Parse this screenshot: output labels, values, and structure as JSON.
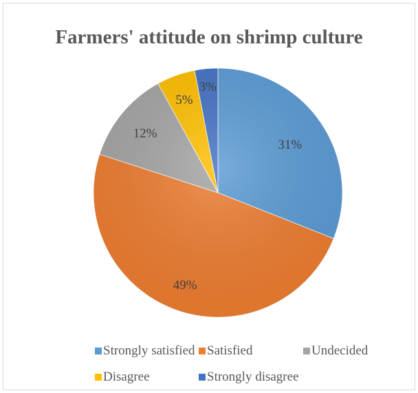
{
  "chart_data": {
    "type": "pie",
    "title": "Farmers' attitude on shrimp culture",
    "categories": [
      "Strongly satisfied",
      "Satisfied",
      "Undecided",
      "Disagree",
      "Strongly disagree"
    ],
    "values": [
      31,
      49,
      12,
      5,
      3
    ],
    "labels": [
      "31%",
      "49%",
      "12%",
      "5%",
      "3%"
    ],
    "colors": [
      "#5b9bd5",
      "#ed7d31",
      "#a5a5a5",
      "#ffc000",
      "#4472c4"
    ],
    "start_angle_deg": 0,
    "direction": "clockwise",
    "legend_position": "bottom"
  }
}
